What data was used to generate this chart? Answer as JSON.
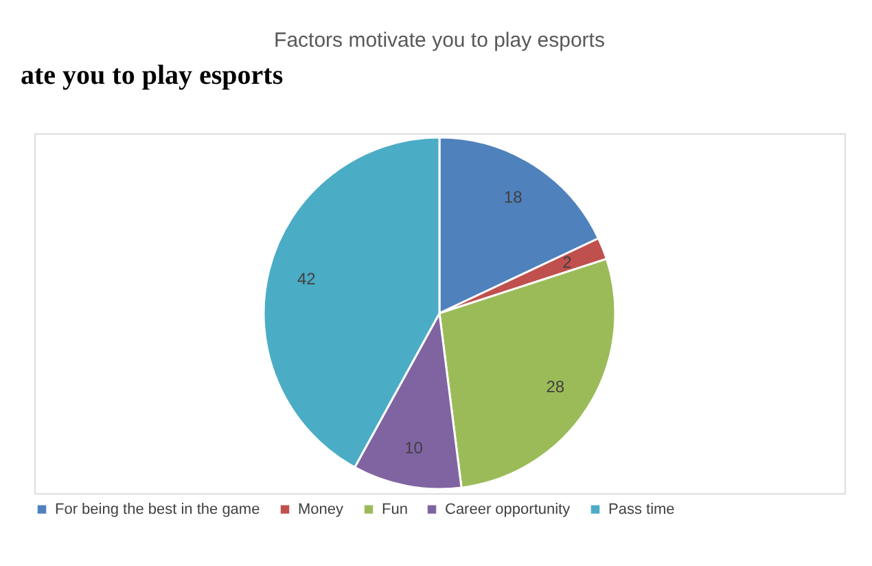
{
  "chart_data": {
    "type": "pie",
    "title": "Factors motivate you to play esports",
    "annotations": [
      "ate you to play esports"
    ],
    "categories": [
      "For being the best in the game",
      "Money",
      "Fun",
      "Career opportunity",
      "Pass time"
    ],
    "values": [
      18,
      2,
      28,
      10,
      42
    ],
    "colors": [
      "#4f81bd",
      "#c0504d",
      "#9bbb59",
      "#8064a2",
      "#4bacc6"
    ],
    "data_labels": true,
    "legend": "bottom"
  }
}
